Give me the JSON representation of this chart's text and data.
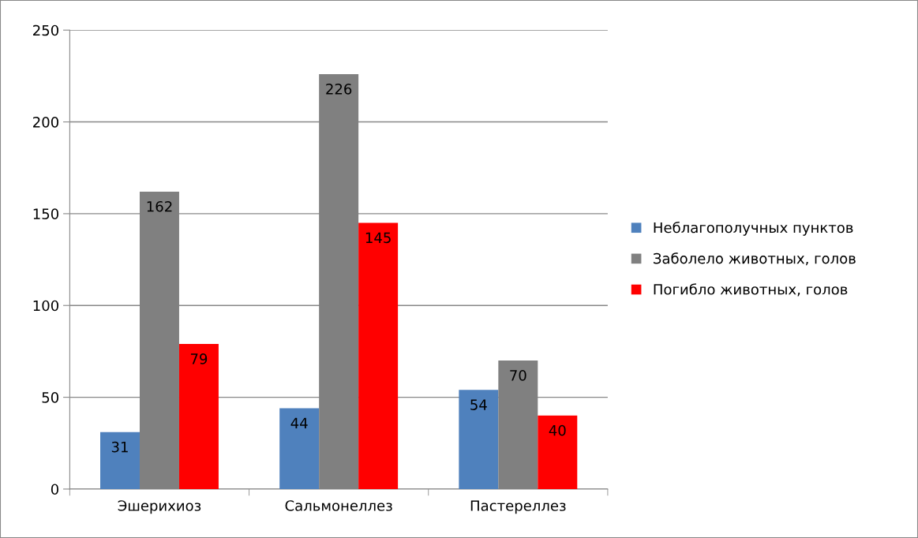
{
  "chart_data": {
    "type": "bar",
    "categories": [
      "Эшерихиоз",
      "Сальмонеллез",
      "Пастереллез"
    ],
    "series": [
      {
        "name": "Неблагополучных пунктов",
        "color": "#4f81bd",
        "values": [
          31,
          44,
          54
        ]
      },
      {
        "name": "Заболело животных, голов",
        "color": "#808080",
        "values": [
          162,
          226,
          70
        ]
      },
      {
        "name": "Погибло животных, голов",
        "color": "#ff0000",
        "values": [
          79,
          145,
          40
        ]
      }
    ],
    "ylim": [
      0,
      250
    ],
    "yticks": [
      0,
      50,
      100,
      150,
      200,
      250
    ],
    "grid": "y",
    "legend": "right",
    "data_labels": true
  }
}
